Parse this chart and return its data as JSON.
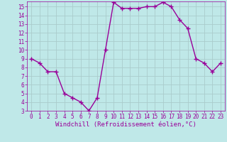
{
  "x": [
    0,
    1,
    2,
    3,
    4,
    5,
    6,
    7,
    8,
    9,
    10,
    11,
    12,
    13,
    14,
    15,
    16,
    17,
    18,
    19,
    20,
    21,
    22,
    23
  ],
  "y": [
    9,
    8.5,
    7.5,
    7.5,
    5,
    4.5,
    4,
    3,
    4.5,
    10,
    15.5,
    14.8,
    14.8,
    14.8,
    15,
    15,
    15.5,
    15,
    13.5,
    12.5,
    9,
    8.5,
    7.5,
    8.5
  ],
  "line_color": "#990099",
  "marker": "+",
  "marker_size": 4,
  "marker_lw": 1.0,
  "bg_color": "#bfe8e8",
  "grid_color": "#aacccc",
  "xlabel": "Windchill (Refroidissement éolien,°C)",
  "xlabel_color": "#990099",
  "tick_color": "#990099",
  "spine_color": "#990099",
  "ylim": [
    3,
    15.6
  ],
  "xlim": [
    -0.5,
    23.5
  ],
  "yticks": [
    3,
    4,
    5,
    6,
    7,
    8,
    9,
    10,
    11,
    12,
    13,
    14,
    15
  ],
  "xticks": [
    0,
    1,
    2,
    3,
    4,
    5,
    6,
    7,
    8,
    9,
    10,
    11,
    12,
    13,
    14,
    15,
    16,
    17,
    18,
    19,
    20,
    21,
    22,
    23
  ],
  "tick_fontsize": 5.5,
  "xlabel_fontsize": 6.5,
  "linewidth": 1.0
}
